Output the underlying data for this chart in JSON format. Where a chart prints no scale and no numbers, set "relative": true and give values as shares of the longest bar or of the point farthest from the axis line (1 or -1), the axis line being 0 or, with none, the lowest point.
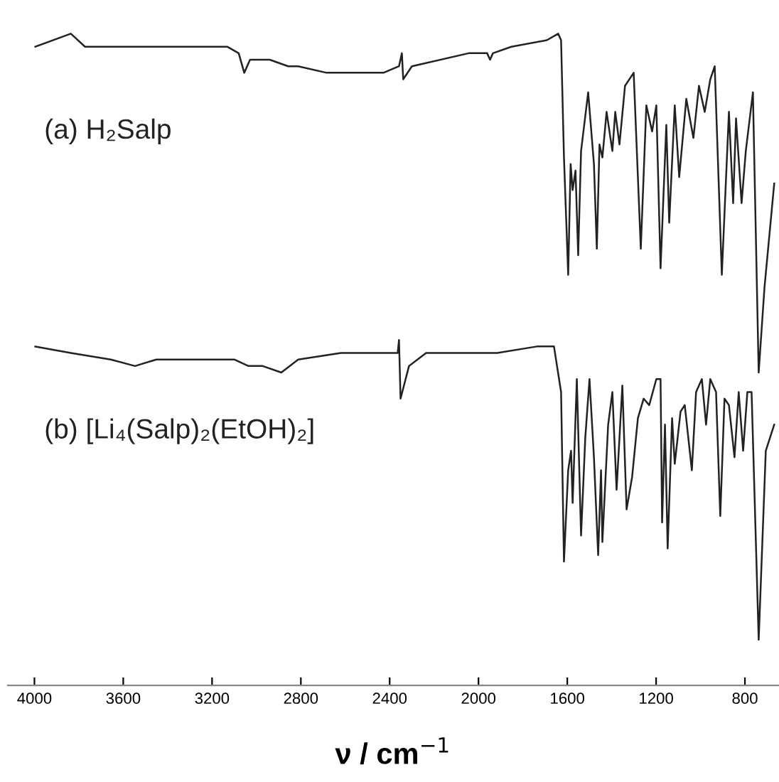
{
  "chart_data": {
    "type": "line",
    "relative": true,
    "xlabel": "ν / cm$^{−1}$",
    "xlim": [
      4120,
      650
    ],
    "xticks": [
      4000,
      3600,
      3200,
      2800,
      2400,
      2000,
      1600,
      1200,
      800
    ],
    "grid": false,
    "legend": false,
    "marker": "none",
    "line_style": "solid",
    "series": [
      {
        "name": "(a) H₂Salp",
        "color": "#222222",
        "x": [
          3996,
          3836,
          3772,
          3516,
          3260,
          3132,
          3080,
          3055,
          3029,
          2940,
          2857,
          2812,
          2684,
          2556,
          2428,
          2358,
          2345,
          2339,
          2300,
          2044,
          1961,
          1948,
          1935,
          1852,
          1692,
          1641,
          1628,
          1615,
          1596,
          1585,
          1576,
          1563,
          1551,
          1538,
          1506,
          1480,
          1467,
          1455,
          1442,
          1423,
          1397,
          1384,
          1365,
          1340,
          1301,
          1269,
          1244,
          1218,
          1199,
          1180,
          1154,
          1141,
          1116,
          1096,
          1064,
          1032,
          1007,
          981,
          956,
          936,
          904,
          872,
          853,
          840,
          815,
          796,
          764,
          738,
          712,
          668
        ],
        "values": [
          0.98,
          1.0,
          0.98,
          0.98,
          0.98,
          0.98,
          0.97,
          0.94,
          0.96,
          0.96,
          0.95,
          0.95,
          0.94,
          0.94,
          0.94,
          0.95,
          0.97,
          0.93,
          0.95,
          0.97,
          0.97,
          0.96,
          0.97,
          0.98,
          0.99,
          1.0,
          0.99,
          0.81,
          0.63,
          0.8,
          0.76,
          0.79,
          0.66,
          0.82,
          0.91,
          0.8,
          0.67,
          0.83,
          0.81,
          0.88,
          0.82,
          0.88,
          0.83,
          0.92,
          0.94,
          0.67,
          0.89,
          0.85,
          0.89,
          0.64,
          0.86,
          0.71,
          0.89,
          0.78,
          0.9,
          0.84,
          0.92,
          0.88,
          0.93,
          0.95,
          0.63,
          0.88,
          0.74,
          0.87,
          0.74,
          0.82,
          0.91,
          0.48,
          0.61,
          0.77
        ]
      },
      {
        "name": "(b) [Li₄(Salp)₂(EtOH)₂]",
        "color": "#222222",
        "x": [
          3996,
          3836,
          3656,
          3547,
          3451,
          3196,
          3100,
          3036,
          2972,
          2888,
          2812,
          2620,
          2428,
          2364,
          2358,
          2351,
          2313,
          2236,
          1980,
          1916,
          1737,
          1660,
          1628,
          1615,
          1596,
          1583,
          1576,
          1557,
          1538,
          1519,
          1500,
          1480,
          1461,
          1448,
          1442,
          1416,
          1397,
          1378,
          1352,
          1333,
          1308,
          1282,
          1256,
          1231,
          1199,
          1180,
          1173,
          1160,
          1148,
          1128,
          1116,
          1090,
          1071,
          1039,
          1020,
          994,
          975,
          956,
          930,
          911,
          892,
          872,
          847,
          828,
          808,
          789,
          770,
          738,
          706,
          668
        ],
        "values": [
          0.52,
          0.51,
          0.5,
          0.49,
          0.5,
          0.5,
          0.5,
          0.49,
          0.49,
          0.48,
          0.5,
          0.51,
          0.51,
          0.51,
          0.53,
          0.44,
          0.49,
          0.51,
          0.51,
          0.51,
          0.52,
          0.52,
          0.45,
          0.19,
          0.33,
          0.36,
          0.28,
          0.47,
          0.23,
          0.38,
          0.47,
          0.35,
          0.2,
          0.33,
          0.22,
          0.4,
          0.45,
          0.3,
          0.46,
          0.27,
          0.32,
          0.41,
          0.44,
          0.43,
          0.47,
          0.47,
          0.25,
          0.4,
          0.21,
          0.41,
          0.34,
          0.42,
          0.43,
          0.33,
          0.45,
          0.47,
          0.4,
          0.47,
          0.45,
          0.26,
          0.44,
          0.43,
          0.35,
          0.45,
          0.36,
          0.45,
          0.45,
          0.07,
          0.36,
          0.4
        ]
      }
    ]
  }
}
